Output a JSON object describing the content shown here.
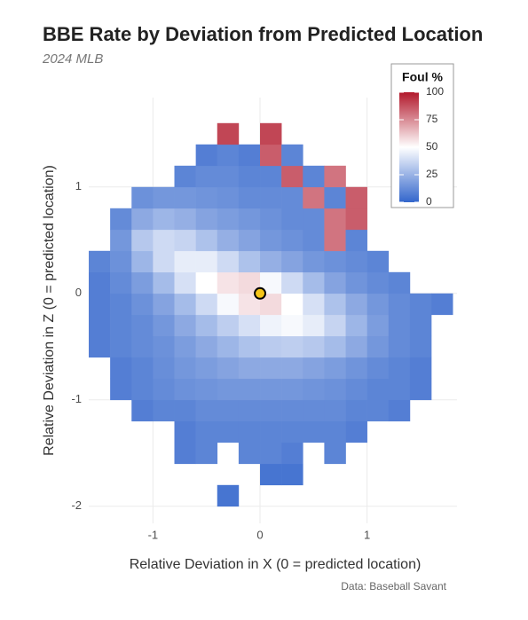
{
  "chart_data": {
    "type": "heatmap",
    "title": "BBE Rate by Deviation from Predicted Location",
    "subtitle": "2024 MLB",
    "x_label": "Relative Deviation in X (0 = predicted location)",
    "y_label": "Relative Deviation in Z (0 = predicted location)",
    "caption": "Data: Baseball Savant",
    "xlim": [
      -1.6,
      1.84
    ],
    "ylim": [
      -2.16,
      1.84
    ],
    "xticks": [
      -1,
      0,
      1
    ],
    "yticks": [
      -2,
      -1,
      0,
      1
    ],
    "grid": true,
    "x_bins": [
      -1.6,
      -1.4,
      -1.2,
      -1.0,
      -0.8,
      -0.6,
      -0.4,
      -0.2,
      0,
      0.2,
      0.4,
      0.6,
      0.8,
      1.0,
      1.2,
      1.4,
      1.6,
      1.8
    ],
    "y_bins": [
      -2.2,
      -2.0,
      -1.8,
      -1.6,
      -1.4,
      -1.2,
      -1.0,
      -0.8,
      -0.6,
      -0.4,
      -0.2,
      0,
      0.2,
      0.4,
      0.6,
      0.8,
      1.0,
      1.2,
      1.4,
      1.6
    ],
    "z": [
      [
        null,
        null,
        null,
        null,
        null,
        null,
        null,
        null,
        null,
        null,
        null,
        null,
        null,
        null,
        null,
        null,
        null
      ],
      [
        null,
        null,
        null,
        null,
        null,
        null,
        5,
        null,
        null,
        null,
        null,
        null,
        null,
        null,
        null,
        null,
        null
      ],
      [
        null,
        null,
        null,
        null,
        null,
        null,
        null,
        null,
        5,
        5,
        null,
        null,
        null,
        null,
        null,
        null,
        null
      ],
      [
        null,
        null,
        null,
        null,
        8,
        10,
        null,
        10,
        10,
        8,
        null,
        10,
        null,
        null,
        null,
        null,
        null
      ],
      [
        null,
        null,
        null,
        null,
        8,
        10,
        10,
        10,
        10,
        10,
        10,
        10,
        8,
        null,
        null,
        null,
        null
      ],
      [
        null,
        null,
        8,
        10,
        10,
        12,
        12,
        12,
        12,
        12,
        12,
        12,
        10,
        10,
        8,
        null,
        null
      ],
      [
        null,
        8,
        10,
        12,
        14,
        15,
        16,
        16,
        16,
        16,
        15,
        14,
        12,
        10,
        10,
        8,
        null
      ],
      [
        null,
        8,
        10,
        13,
        16,
        18,
        20,
        22,
        22,
        22,
        20,
        18,
        15,
        12,
        10,
        8,
        null
      ],
      [
        8,
        10,
        12,
        14,
        18,
        22,
        26,
        30,
        33,
        34,
        32,
        28,
        22,
        16,
        12,
        10,
        null
      ],
      [
        8,
        10,
        12,
        16,
        22,
        28,
        34,
        40,
        46,
        48,
        44,
        36,
        26,
        18,
        12,
        10,
        null
      ],
      [
        8,
        10,
        14,
        20,
        28,
        38,
        48,
        56,
        58,
        50,
        40,
        30,
        22,
        16,
        12,
        10,
        8
      ],
      [
        8,
        12,
        18,
        28,
        40,
        50,
        56,
        58,
        48,
        38,
        28,
        20,
        15,
        12,
        10,
        null,
        null
      ],
      [
        10,
        14,
        26,
        38,
        44,
        44,
        38,
        30,
        24,
        20,
        16,
        14,
        12,
        10,
        null,
        null,
        null
      ],
      [
        null,
        16,
        32,
        38,
        36,
        30,
        24,
        20,
        16,
        14,
        12,
        80,
        10,
        null,
        null,
        null,
        null
      ],
      [
        null,
        12,
        22,
        26,
        24,
        20,
        18,
        16,
        14,
        12,
        12,
        80,
        85,
        null,
        null,
        null,
        null
      ],
      [
        null,
        null,
        14,
        16,
        16,
        15,
        14,
        12,
        12,
        12,
        80,
        10,
        85,
        null,
        null,
        null,
        null
      ],
      [
        null,
        null,
        null,
        null,
        10,
        12,
        12,
        10,
        10,
        85,
        10,
        80,
        null,
        null,
        null,
        null,
        null
      ],
      [
        null,
        null,
        null,
        null,
        null,
        8,
        10,
        8,
        85,
        10,
        null,
        null,
        null,
        null,
        null,
        null,
        null
      ],
      [
        null,
        null,
        null,
        null,
        null,
        null,
        90,
        null,
        90,
        null,
        null,
        null,
        null,
        null,
        null,
        null,
        null
      ]
    ],
    "colorbar": {
      "title": "Foul %",
      "lim": [
        0,
        100
      ],
      "ticks": [
        0,
        25,
        50,
        75,
        100
      ],
      "colors": [
        "#3366cc",
        "#ffffff",
        "#b2182b"
      ]
    },
    "marker": {
      "x": 0,
      "y": 0,
      "color": "#f5c518"
    }
  }
}
